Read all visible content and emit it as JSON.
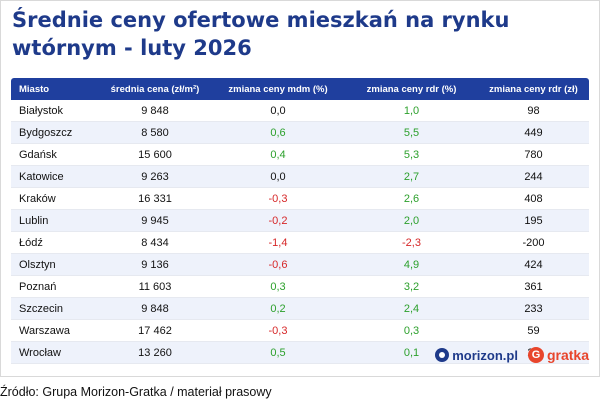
{
  "title": "Średnie ceny ofertowe mieszkań na rynku wtórnym - luty 2026",
  "headers": [
    "Miasto",
    "średnia cena (zł/m²)",
    "zmiana ceny mdm (%)",
    "zmiana ceny rdr (%)",
    "zmiana ceny rdr (zł)"
  ],
  "rows": [
    [
      "Białystok",
      "9 848",
      "0,0",
      "1,0",
      "98"
    ],
    [
      "Bydgoszcz",
      "8 580",
      "0,6",
      "5,5",
      "449"
    ],
    [
      "Gdańsk",
      "15 600",
      "0,4",
      "5,3",
      "780"
    ],
    [
      "Katowice",
      "9 263",
      "0,0",
      "2,7",
      "244"
    ],
    [
      "Kraków",
      "16 331",
      "-0,3",
      "2,6",
      "408"
    ],
    [
      "Lublin",
      "9 945",
      "-0,2",
      "2,0",
      "195"
    ],
    [
      "Łódź",
      "8 434",
      "-1,4",
      "-2,3",
      "-200"
    ],
    [
      "Olsztyn",
      "9 136",
      "-0,6",
      "4,9",
      "424"
    ],
    [
      "Poznań",
      "11 603",
      "0,3",
      "3,2",
      "361"
    ],
    [
      "Szczecin",
      "9 848",
      "0,2",
      "2,4",
      "233"
    ],
    [
      "Warszawa",
      "17 462",
      "-0,3",
      "0,3",
      "59"
    ],
    [
      "Wrocław",
      "13 260",
      "0,5",
      "0,1",
      "20"
    ]
  ],
  "logos": {
    "morizon": "morizon.pl",
    "gratka": "gratka"
  },
  "source": "Źródło: Grupa Morizon-Gratka / materiał prasowy",
  "colors": {
    "header_bg": "#1f3f9e",
    "title": "#1e3a8a",
    "positive": "#2ca02c",
    "negative": "#d62728",
    "row_alt": "#eef2fb"
  }
}
